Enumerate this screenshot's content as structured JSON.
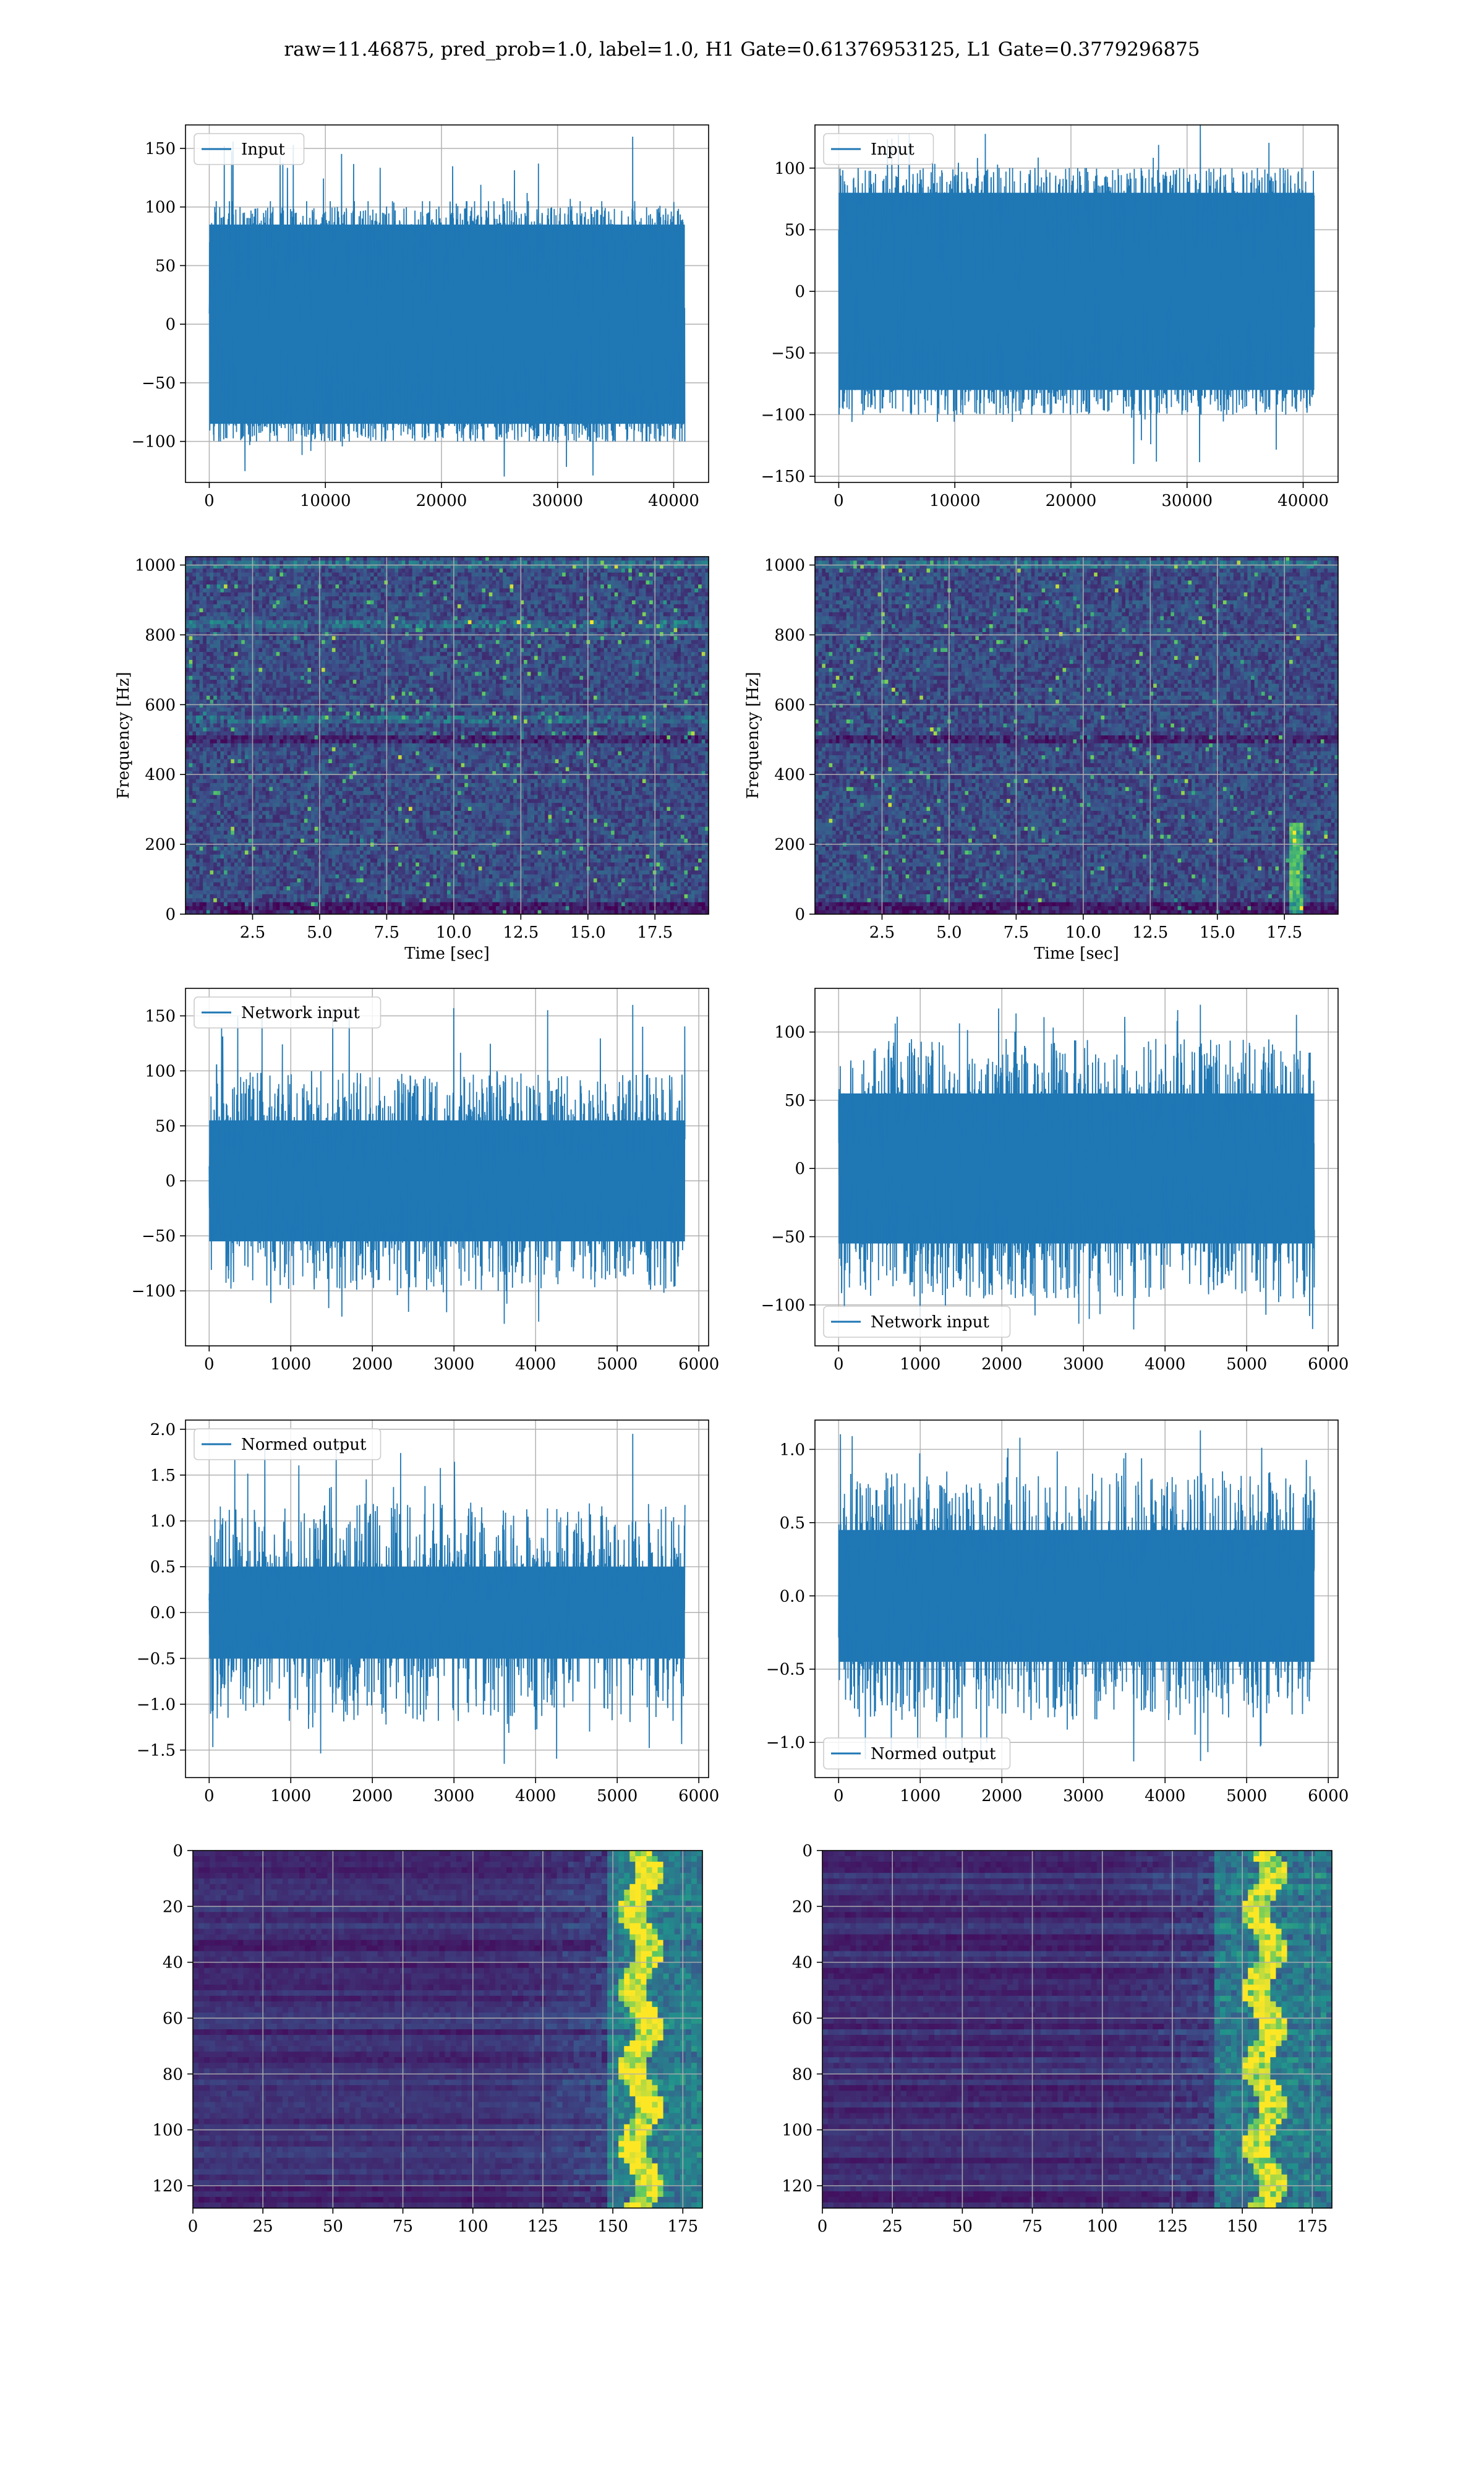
{
  "figure": {
    "suptitle": "raw=11.46875, pred_prob=1.0, label=1.0, H1 Gate=0.61376953125, L1 Gate=0.3779296875"
  },
  "colors": {
    "line": "#1f77b4",
    "grid": "#b0b0b0",
    "viridis_low": "#440154",
    "viridis_mid": "#21918c",
    "viridis_high": "#fde725"
  },
  "chart_data": [
    {
      "id": "input_h1",
      "type": "line",
      "legend": "Input",
      "legend_loc": "upper-left",
      "xlim": [
        -2048,
        43008
      ],
      "ylim": [
        -135,
        170
      ],
      "xticks": [
        0,
        10000,
        20000,
        30000,
        40000
      ],
      "xtick_labels": [
        "0",
        "10000",
        "20000",
        "30000",
        "40000"
      ],
      "yticks": [
        -100,
        -50,
        0,
        50,
        100,
        150
      ],
      "ytick_labels": [
        "−100",
        "−50",
        "0",
        "50",
        "100",
        "150"
      ],
      "xlabel": "",
      "ylabel": "",
      "grid": true,
      "series": {
        "x_range": [
          0,
          40960
        ],
        "envelope": 85,
        "typical_min": -100,
        "typical_max": 105,
        "peak_max": 160,
        "peak_min": -130
      }
    },
    {
      "id": "input_l1",
      "type": "line",
      "legend": "Input",
      "legend_loc": "upper-left",
      "xlim": [
        -2048,
        43008
      ],
      "ylim": [
        -155,
        135
      ],
      "xticks": [
        0,
        10000,
        20000,
        30000,
        40000
      ],
      "xtick_labels": [
        "0",
        "10000",
        "20000",
        "30000",
        "40000"
      ],
      "yticks": [
        -150,
        -100,
        -50,
        0,
        50,
        100
      ],
      "ytick_labels": [
        "−150",
        "−100",
        "−50",
        "0",
        "50",
        "100"
      ],
      "xlabel": "",
      "ylabel": "",
      "grid": true,
      "series": {
        "x_range": [
          0,
          40960
        ],
        "envelope": 80,
        "typical_min": -100,
        "typical_max": 100,
        "peak_max": 135,
        "peak_min": -140
      }
    },
    {
      "id": "spec_h1",
      "type": "heatmap",
      "colormap": "viridis",
      "xlim": [
        0,
        19.5
      ],
      "ylim": [
        0,
        1024
      ],
      "xticks": [
        2.5,
        5.0,
        7.5,
        10.0,
        12.5,
        15.0,
        17.5
      ],
      "xtick_labels": [
        "2.5",
        "5.0",
        "7.5",
        "10.0",
        "12.5",
        "15.0",
        "17.5"
      ],
      "yticks": [
        0,
        200,
        400,
        600,
        800,
        1000
      ],
      "ytick_labels": [
        "0",
        "200",
        "400",
        "600",
        "800",
        "1000"
      ],
      "xlabel": "Time [sec]",
      "ylabel": "Frequency [Hz]",
      "grid": true,
      "bright_bands_hz": [
        560,
        830,
        1000
      ],
      "dark_band_hz": 500
    },
    {
      "id": "spec_l1",
      "type": "heatmap",
      "colormap": "viridis",
      "xlim": [
        0,
        19.5
      ],
      "ylim": [
        0,
        1024
      ],
      "xticks": [
        2.5,
        5.0,
        7.5,
        10.0,
        12.5,
        15.0,
        17.5
      ],
      "xtick_labels": [
        "2.5",
        "5.0",
        "7.5",
        "10.0",
        "12.5",
        "15.0",
        "17.5"
      ],
      "yticks": [
        0,
        200,
        400,
        600,
        800,
        1000
      ],
      "ytick_labels": [
        "0",
        "200",
        "400",
        "600",
        "800",
        "1000"
      ],
      "xlabel": "Time [sec]",
      "ylabel": "Frequency [Hz]",
      "grid": true,
      "bright_bands_hz": [
        1000
      ],
      "dark_band_hz": 500,
      "chirp_time_sec": 17.9
    },
    {
      "id": "netin_h1",
      "type": "line",
      "legend": "Network input",
      "legend_loc": "upper-left",
      "xlim": [
        -290,
        6120
      ],
      "ylim": [
        -150,
        175
      ],
      "xticks": [
        0,
        1000,
        2000,
        3000,
        4000,
        5000,
        6000
      ],
      "xtick_labels": [
        "0",
        "1000",
        "2000",
        "3000",
        "4000",
        "5000",
        "6000"
      ],
      "yticks": [
        -100,
        -50,
        0,
        50,
        100,
        150
      ],
      "ytick_labels": [
        "−100",
        "−50",
        "0",
        "50",
        "100",
        "150"
      ],
      "xlabel": "",
      "ylabel": "",
      "grid": true,
      "series": {
        "x_range": [
          0,
          5830
        ],
        "envelope": 55,
        "typical_min": -100,
        "typical_max": 105,
        "peak_max": 160,
        "peak_min": -130
      }
    },
    {
      "id": "netin_l1",
      "type": "line",
      "legend": "Network input",
      "legend_loc": "lower-left",
      "xlim": [
        -290,
        6120
      ],
      "ylim": [
        -130,
        132
      ],
      "xticks": [
        0,
        1000,
        2000,
        3000,
        4000,
        5000,
        6000
      ],
      "xtick_labels": [
        "0",
        "1000",
        "2000",
        "3000",
        "4000",
        "5000",
        "6000"
      ],
      "yticks": [
        -100,
        -50,
        0,
        50,
        100
      ],
      "ytick_labels": [
        "−100",
        "−50",
        "0",
        "50",
        "100"
      ],
      "xlabel": "",
      "ylabel": "",
      "grid": true,
      "series": {
        "x_range": [
          0,
          5830
        ],
        "envelope": 55,
        "typical_min": -95,
        "typical_max": 100,
        "peak_max": 120,
        "peak_min": -118
      }
    },
    {
      "id": "normout_h1",
      "type": "line",
      "legend": "Normed output",
      "legend_loc": "upper-left",
      "xlim": [
        -290,
        6120
      ],
      "ylim": [
        -1.8,
        2.1
      ],
      "xticks": [
        0,
        1000,
        2000,
        3000,
        4000,
        5000,
        6000
      ],
      "xtick_labels": [
        "0",
        "1000",
        "2000",
        "3000",
        "4000",
        "5000",
        "6000"
      ],
      "yticks": [
        -1.5,
        -1.0,
        -0.5,
        0.0,
        0.5,
        1.0,
        1.5,
        2.0
      ],
      "ytick_labels": [
        "−1.5",
        "−1.0",
        "−0.5",
        "0.0",
        "0.5",
        "1.0",
        "1.5",
        "2.0"
      ],
      "xlabel": "",
      "ylabel": "",
      "grid": true,
      "series": {
        "x_range": [
          0,
          5830
        ],
        "envelope": 0.5,
        "typical_min": -1.2,
        "typical_max": 1.3,
        "peak_max": 1.95,
        "peak_min": -1.65
      }
    },
    {
      "id": "normout_l1",
      "type": "line",
      "legend": "Normed output",
      "legend_loc": "lower-left",
      "xlim": [
        -290,
        6120
      ],
      "ylim": [
        -1.24,
        1.2
      ],
      "xticks": [
        0,
        1000,
        2000,
        3000,
        4000,
        5000,
        6000
      ],
      "xtick_labels": [
        "0",
        "1000",
        "2000",
        "3000",
        "4000",
        "5000",
        "6000"
      ],
      "yticks": [
        -1.0,
        -0.5,
        0.0,
        0.5,
        1.0
      ],
      "ytick_labels": [
        "−1.0",
        "−0.5",
        "0.0",
        "0.5",
        "1.0"
      ],
      "xlabel": "",
      "ylabel": "",
      "grid": true,
      "series": {
        "x_range": [
          0,
          5830
        ],
        "envelope": 0.45,
        "typical_min": -0.85,
        "typical_max": 0.9,
        "peak_max": 1.13,
        "peak_min": -1.13
      }
    },
    {
      "id": "feat_h1",
      "type": "heatmap",
      "colormap": "viridis",
      "xlim": [
        0,
        182
      ],
      "ylim": [
        128,
        0
      ],
      "xticks": [
        0,
        25,
        50,
        75,
        100,
        125,
        150,
        175
      ],
      "xtick_labels": [
        "0",
        "25",
        "50",
        "75",
        "100",
        "125",
        "150",
        "175"
      ],
      "yticks": [
        0,
        20,
        40,
        60,
        80,
        100,
        120
      ],
      "ytick_labels": [
        "0",
        "20",
        "40",
        "60",
        "80",
        "100",
        "120"
      ],
      "xlabel": "",
      "ylabel": "",
      "grid": true,
      "active_columns": [
        148,
        182
      ],
      "peak_column": 160
    },
    {
      "id": "feat_l1",
      "type": "heatmap",
      "colormap": "viridis",
      "xlim": [
        0,
        182
      ],
      "ylim": [
        128,
        0
      ],
      "xticks": [
        0,
        25,
        50,
        75,
        100,
        125,
        150,
        175
      ],
      "xtick_labels": [
        "0",
        "25",
        "50",
        "75",
        "100",
        "125",
        "150",
        "175"
      ],
      "yticks": [
        0,
        20,
        40,
        60,
        80,
        100,
        120
      ],
      "ytick_labels": [
        "0",
        "20",
        "40",
        "60",
        "80",
        "100",
        "120"
      ],
      "xlabel": "",
      "ylabel": "",
      "grid": true,
      "active_columns": [
        140,
        182
      ],
      "peak_column": 158
    }
  ]
}
